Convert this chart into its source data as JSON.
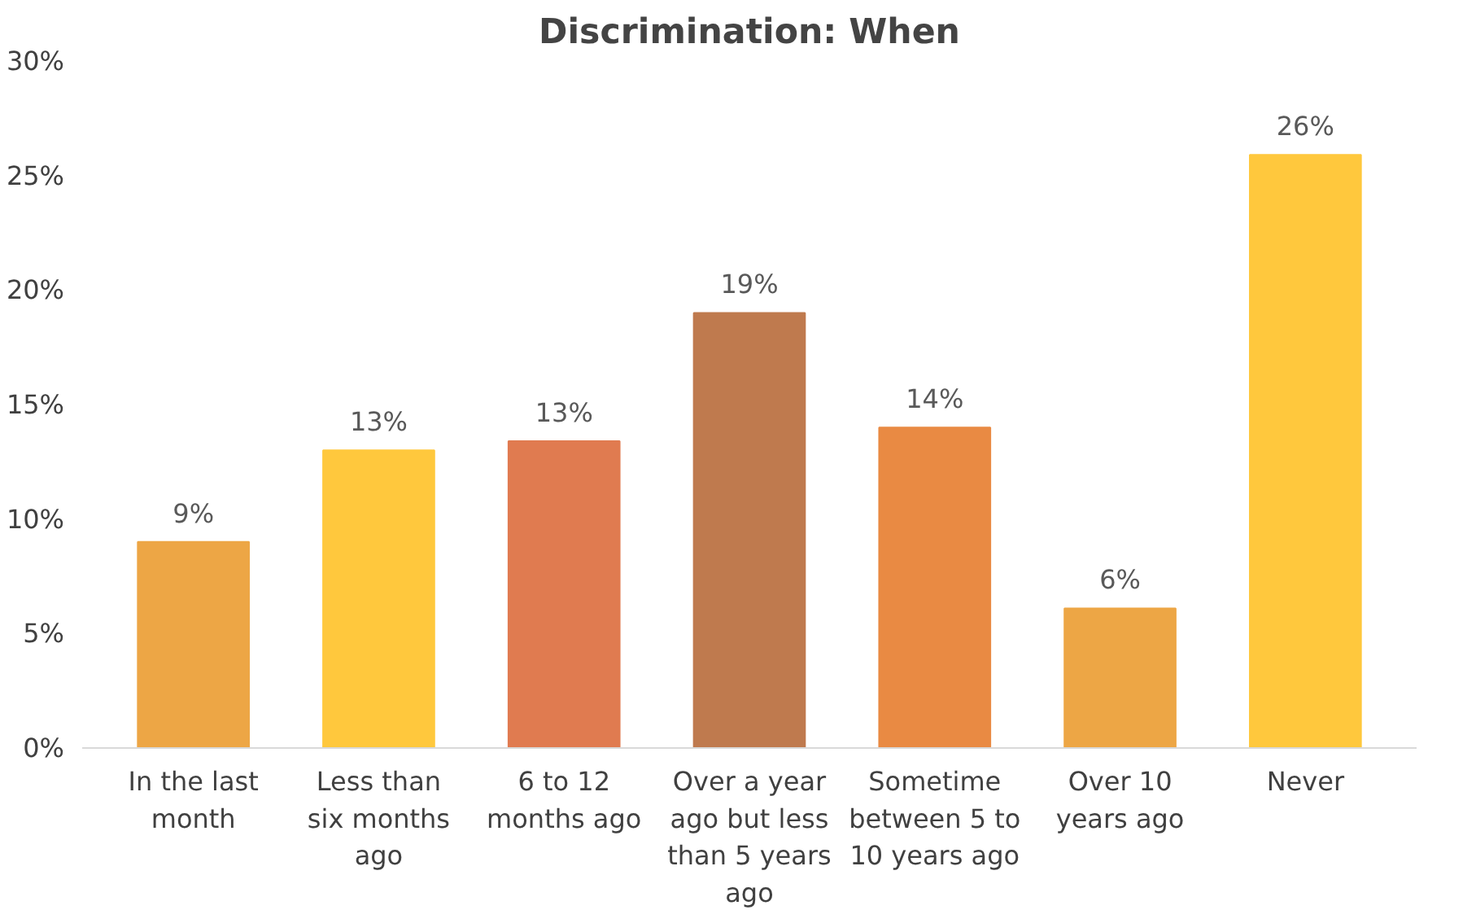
{
  "chart_data": {
    "type": "bar",
    "title": "Discrimination: When",
    "categories": [
      "In the last month",
      "Less than six months ago",
      "6 to 12 months ago",
      "Over a year ago but less than 5 years ago",
      "Sometime between 5 to 10 years ago",
      "Over 10 years ago",
      "Never"
    ],
    "values": [
      9,
      13,
      13.4,
      19,
      14,
      6.1,
      25.9
    ],
    "value_labels": [
      "9%",
      "13%",
      "13%",
      "19%",
      "14%",
      "6%",
      "26%"
    ],
    "colors": [
      "#eda645",
      "#ffc83d",
      "#e07b50",
      "#bf7a4e",
      "#e98a43",
      "#eda645",
      "#ffc83d"
    ],
    "ylim": [
      0,
      30
    ],
    "yticks": [
      {
        "value": 0,
        "label": "0%"
      },
      {
        "value": 5,
        "label": "5%"
      },
      {
        "value": 10,
        "label": "10%"
      },
      {
        "value": 15,
        "label": "15%"
      },
      {
        "value": 20,
        "label": "20%"
      },
      {
        "value": 25,
        "label": "25%"
      },
      {
        "value": 30,
        "label": "30%"
      }
    ],
    "grid": false
  }
}
